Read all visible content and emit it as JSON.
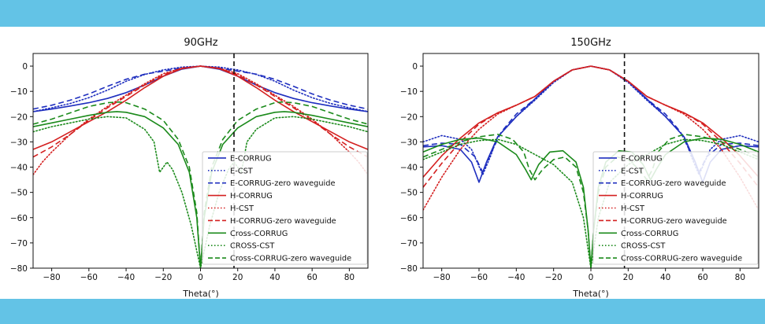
{
  "chart_data": [
    {
      "type": "line",
      "title": "90GHz",
      "xlabel": "Theta(°)",
      "ylabel": "",
      "xlim": [
        -90,
        90
      ],
      "ylim": [
        -80,
        5
      ],
      "xticks": [
        -80,
        -60,
        -40,
        -20,
        0,
        20,
        40,
        60,
        80
      ],
      "xtick_labels": [
        "−80",
        "−60",
        "−40",
        "−20",
        "0",
        "20",
        "40",
        "60",
        "80"
      ],
      "yticks": [
        0,
        -10,
        -20,
        -30,
        -40,
        -50,
        -60,
        -70,
        -80
      ],
      "ytick_labels": [
        "0",
        "−10",
        "−20",
        "−30",
        "−40",
        "−50",
        "−60",
        "−70",
        "−80"
      ],
      "vline_x": 18,
      "legend_position": "lower-right",
      "series": [
        {
          "name": "E-CORRUG",
          "color": "#1f2fbf",
          "style": "solid",
          "x": [
            -90,
            -80,
            -70,
            -60,
            -50,
            -40,
            -30,
            -20,
            -10,
            0,
            10,
            20,
            30,
            40,
            50,
            60,
            70,
            80,
            90
          ],
          "y": [
            -18,
            -17,
            -15.8,
            -14.5,
            -12.8,
            -10.5,
            -7.5,
            -4,
            -1.2,
            0,
            -1.2,
            -4,
            -7.5,
            -10.5,
            -12.8,
            -14.5,
            -15.8,
            -17,
            -18
          ]
        },
        {
          "name": "E-CST",
          "color": "#1f2fbf",
          "style": "dotted",
          "x": [
            -90,
            -80,
            -70,
            -60,
            -50,
            -40,
            -30,
            -20,
            -10,
            0,
            10,
            20,
            30,
            40,
            50,
            60,
            70,
            80,
            90
          ],
          "y": [
            -18,
            -16.5,
            -14.8,
            -12.5,
            -9.5,
            -6,
            -3.3,
            -1.5,
            -0.4,
            0,
            -0.4,
            -1.5,
            -3.3,
            -6,
            -9.5,
            -12.5,
            -14.8,
            -16.5,
            -18
          ]
        },
        {
          "name": "E-CORRUG-zero waveguide",
          "color": "#1f2fbf",
          "style": "dashed",
          "x": [
            -90,
            -80,
            -70,
            -60,
            -50,
            -40,
            -30,
            -20,
            -10,
            0,
            10,
            20,
            30,
            40,
            50,
            60,
            70,
            80,
            90
          ],
          "y": [
            -17,
            -15.5,
            -13.5,
            -11,
            -8,
            -5.2,
            -3.2,
            -2,
            -0.8,
            0,
            -0.8,
            -2,
            -3.2,
            -5.2,
            -8,
            -11,
            -13.5,
            -15.5,
            -17
          ]
        },
        {
          "name": "H-CORRUG",
          "color": "#d42020",
          "style": "solid",
          "x": [
            -90,
            -80,
            -70,
            -60,
            -50,
            -40,
            -30,
            -20,
            -10,
            0,
            10,
            20,
            30,
            40,
            50,
            60,
            70,
            80,
            90
          ],
          "y": [
            -33,
            -30,
            -26,
            -22,
            -18,
            -13.5,
            -8.5,
            -4,
            -1,
            0,
            -1,
            -4,
            -8.5,
            -13.5,
            -18,
            -22,
            -26,
            -30,
            -33
          ]
        },
        {
          "name": "H-CST",
          "color": "#d42020",
          "style": "dotted",
          "x": [
            -90,
            -85,
            -80,
            -70,
            -60,
            -50,
            -40,
            -30,
            -20,
            -10,
            0,
            10,
            20,
            30,
            40,
            50,
            60,
            70,
            80,
            85,
            90
          ],
          "y": [
            -43,
            -38,
            -34,
            -27,
            -21,
            -16,
            -11.5,
            -7,
            -3,
            -0.8,
            0,
            -0.8,
            -3,
            -7,
            -11.5,
            -16,
            -21,
            -27,
            -34,
            -38,
            -43
          ]
        },
        {
          "name": "H-CORRUG-zero waveguide",
          "color": "#d42020",
          "style": "dashed",
          "x": [
            -90,
            -80,
            -70,
            -60,
            -50,
            -40,
            -30,
            -20,
            -10,
            0,
            10,
            20,
            30,
            40,
            50,
            60,
            70,
            80,
            90
          ],
          "y": [
            -36,
            -32,
            -27,
            -21.5,
            -16.5,
            -12,
            -7.5,
            -3.5,
            -0.9,
            0,
            -0.9,
            -3.5,
            -7.5,
            -12,
            -16.5,
            -21.5,
            -27,
            -32,
            -36
          ]
        },
        {
          "name": "Cross-CORRUG",
          "color": "#1b8a1b",
          "style": "solid",
          "x": [
            -90,
            -80,
            -70,
            -60,
            -50,
            -45,
            -40,
            -30,
            -20,
            -12,
            -6,
            -2,
            0,
            2,
            6,
            12,
            20,
            30,
            40,
            45,
            50,
            60,
            70,
            80,
            90
          ],
          "y": [
            -24,
            -22.5,
            -21,
            -19.5,
            -18.3,
            -18,
            -18.3,
            -20,
            -24.5,
            -31,
            -42,
            -60,
            -80,
            -60,
            -42,
            -31,
            -24.5,
            -20,
            -18.3,
            -18,
            -18.3,
            -19.5,
            -21,
            -22.5,
            -24
          ]
        },
        {
          "name": "CROSS-CST",
          "color": "#1b8a1b",
          "style": "dotted",
          "x": [
            -90,
            -80,
            -70,
            -60,
            -50,
            -40,
            -30,
            -25,
            -22,
            -18,
            -15,
            -10,
            -5,
            0,
            5,
            10,
            15,
            18,
            22,
            25,
            30,
            40,
            50,
            60,
            70,
            80,
            90
          ],
          "y": [
            -26,
            -24,
            -22.5,
            -21,
            -20,
            -20.5,
            -25,
            -30,
            -42,
            -38,
            -41,
            -50,
            -63,
            -80,
            -63,
            -50,
            -41,
            -38,
            -42,
            -30,
            -25,
            -20.5,
            -20,
            -21,
            -22.5,
            -24,
            -26
          ]
        },
        {
          "name": "Cross-CORRUG-zero waveguide",
          "color": "#1b8a1b",
          "style": "dashed",
          "x": [
            -90,
            -80,
            -70,
            -60,
            -50,
            -44,
            -40,
            -30,
            -20,
            -12,
            -6,
            -2,
            0,
            2,
            6,
            12,
            20,
            30,
            40,
            44,
            50,
            60,
            70,
            80,
            90
          ],
          "y": [
            -23,
            -21,
            -18.5,
            -16,
            -14.5,
            -14.2,
            -14.5,
            -17,
            -21.5,
            -29,
            -40,
            -58,
            -80,
            -58,
            -40,
            -29,
            -21.5,
            -17,
            -14.5,
            -14.2,
            -14.5,
            -16,
            -18.5,
            -21,
            -23
          ]
        }
      ]
    },
    {
      "type": "line",
      "title": "150GHz",
      "xlabel": "Theta(°)",
      "ylabel": "",
      "xlim": [
        -90,
        90
      ],
      "ylim": [
        -80,
        5
      ],
      "xticks": [
        -80,
        -60,
        -40,
        -20,
        0,
        20,
        40,
        60,
        80
      ],
      "xtick_labels": [
        "−80",
        "−60",
        "−40",
        "−20",
        "0",
        "20",
        "40",
        "60",
        "80"
      ],
      "yticks": [
        0,
        -10,
        -20,
        -30,
        -40,
        -50,
        -60,
        -70,
        -80
      ],
      "ytick_labels": [
        "0",
        "−10",
        "−20",
        "−30",
        "−40",
        "−50",
        "−60",
        "−70",
        "−80"
      ],
      "vline_x": 18,
      "legend_position": "lower-right",
      "series": [
        {
          "name": "E-CORRUG",
          "color": "#1f2fbf",
          "style": "solid",
          "x": [
            -90,
            -80,
            -70,
            -64,
            -60,
            -56,
            -50,
            -40,
            -30,
            -20,
            -10,
            0,
            10,
            20,
            30,
            40,
            50,
            56,
            60,
            64,
            70,
            80,
            90
          ],
          "y": [
            -32,
            -31.5,
            -33,
            -38,
            -46,
            -38,
            -28,
            -20,
            -13,
            -6,
            -1.5,
            0,
            -1.5,
            -6,
            -13,
            -20,
            -28,
            -38,
            -46,
            -38,
            -33,
            -31.5,
            -32
          ]
        },
        {
          "name": "E-CST",
          "color": "#1f2fbf",
          "style": "dotted",
          "x": [
            -90,
            -80,
            -70,
            -64,
            -58,
            -54,
            -50,
            -40,
            -30,
            -20,
            -10,
            0,
            10,
            20,
            30,
            40,
            50,
            54,
            58,
            64,
            70,
            80,
            90
          ],
          "y": [
            -30,
            -27.5,
            -29,
            -33,
            -43,
            -36,
            -28,
            -20,
            -13.5,
            -6.5,
            -1.5,
            0,
            -1.5,
            -6.5,
            -13.5,
            -20,
            -28,
            -36,
            -43,
            -33,
            -29,
            -27.5,
            -30
          ]
        },
        {
          "name": "E-CORRUG-zero waveguide",
          "color": "#1f2fbf",
          "style": "dashed",
          "x": [
            -90,
            -80,
            -70,
            -62,
            -58,
            -54,
            -48,
            -40,
            -30,
            -20,
            -10,
            0,
            10,
            20,
            30,
            40,
            48,
            54,
            58,
            62,
            70,
            80,
            90
          ],
          "y": [
            -31.5,
            -30.5,
            -31,
            -36,
            -42,
            -35,
            -26,
            -19,
            -13,
            -6,
            -1.5,
            0,
            -1.5,
            -6,
            -13,
            -19,
            -26,
            -35,
            -42,
            -36,
            -31,
            -30.5,
            -31.5
          ]
        },
        {
          "name": "H-CORRUG",
          "color": "#d42020",
          "style": "solid",
          "x": [
            -90,
            -80,
            -70,
            -60,
            -50,
            -40,
            -30,
            -20,
            -10,
            0,
            10,
            20,
            30,
            40,
            50,
            60,
            70,
            80,
            90
          ],
          "y": [
            -44,
            -35.5,
            -28.5,
            -22.5,
            -18.5,
            -15.5,
            -12,
            -6,
            -1.5,
            0,
            -1.5,
            -6,
            -12,
            -15.5,
            -18.5,
            -22.5,
            -28.5,
            -35.5,
            -44
          ]
        },
        {
          "name": "H-CST",
          "color": "#d42020",
          "style": "dotted",
          "x": [
            -90,
            -80,
            -70,
            -60,
            -50,
            -40,
            -30,
            -20,
            -10,
            0,
            10,
            20,
            30,
            40,
            50,
            60,
            70,
            80,
            90
          ],
          "y": [
            -57,
            -44,
            -33,
            -25,
            -19,
            -15.5,
            -12,
            -6,
            -1.5,
            0,
            -1.5,
            -6,
            -12,
            -15.5,
            -19,
            -25,
            -33,
            -44,
            -57
          ]
        },
        {
          "name": "H-CORRUG-zero waveguide",
          "color": "#d42020",
          "style": "dashed",
          "x": [
            -90,
            -80,
            -70,
            -60,
            -50,
            -40,
            -30,
            -20,
            -10,
            0,
            10,
            20,
            30,
            40,
            50,
            60,
            70,
            80,
            90
          ],
          "y": [
            -48,
            -38.5,
            -30,
            -23,
            -18.5,
            -15.5,
            -12,
            -6,
            -1.5,
            0,
            -1.5,
            -6,
            -12,
            -15.5,
            -18.5,
            -23,
            -30,
            -38.5,
            -48
          ]
        },
        {
          "name": "Cross-CORRUG",
          "color": "#1b8a1b",
          "style": "solid",
          "x": [
            -90,
            -80,
            -70,
            -60,
            -50,
            -40,
            -35,
            -32,
            -28,
            -22,
            -15,
            -8,
            -4,
            -1.5,
            0,
            1.5,
            4,
            8,
            15,
            22,
            28,
            32,
            35,
            40,
            50,
            60,
            70,
            80,
            90
          ],
          "y": [
            -34,
            -31,
            -29,
            -28.5,
            -30,
            -35,
            -41,
            -45,
            -39,
            -34,
            -33.5,
            -38,
            -48,
            -65,
            -80,
            -65,
            -48,
            -38,
            -33.5,
            -34,
            -39,
            -45,
            -41,
            -35,
            -30,
            -28.5,
            -29,
            -31,
            -34
          ]
        },
        {
          "name": "CROSS-CST",
          "color": "#1b8a1b",
          "style": "dotted",
          "x": [
            -90,
            -80,
            -70,
            -60,
            -50,
            -40,
            -30,
            -20,
            -10,
            -4,
            0,
            4,
            10,
            20,
            30,
            40,
            50,
            60,
            70,
            80,
            90
          ],
          "y": [
            -37,
            -34,
            -31,
            -29.5,
            -29,
            -31,
            -35,
            -39,
            -46,
            -60,
            -80,
            -60,
            -46,
            -39,
            -35,
            -31,
            -29,
            -29.5,
            -31,
            -34,
            -37
          ]
        },
        {
          "name": "Cross-CORRUG-zero waveguide",
          "color": "#1b8a1b",
          "style": "dashed",
          "x": [
            -90,
            -80,
            -70,
            -60,
            -50,
            -42,
            -36,
            -33,
            -30,
            -26,
            -20,
            -14,
            -8,
            -4,
            -1.5,
            0,
            1.5,
            4,
            8,
            14,
            20,
            26,
            30,
            33,
            36,
            42,
            50,
            60,
            70,
            80,
            90
          ],
          "y": [
            -36,
            -33,
            -30,
            -28,
            -27,
            -29,
            -34,
            -41,
            -45,
            -41,
            -37,
            -36,
            -40,
            -50,
            -65,
            -80,
            -65,
            -50,
            -40,
            -36,
            -37,
            -41,
            -45,
            -41,
            -34,
            -29,
            -27,
            -28,
            -30,
            -33,
            -36
          ]
        }
      ]
    }
  ]
}
